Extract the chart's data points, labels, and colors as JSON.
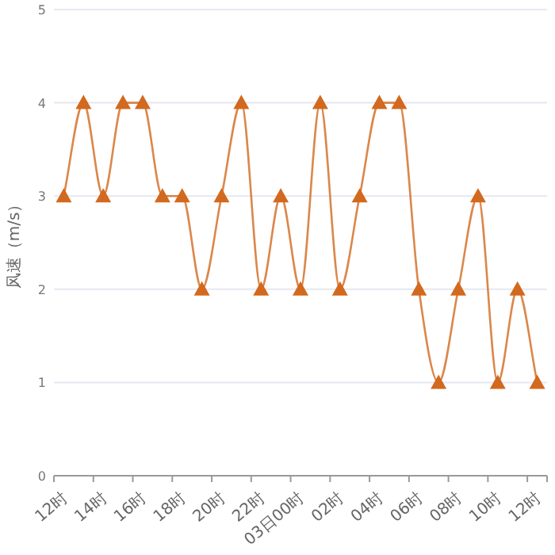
{
  "chart_data": {
    "type": "line",
    "ylabel": "风速（m/s）",
    "categories": [
      "12时",
      null,
      "14时",
      null,
      "16时",
      null,
      "18时",
      null,
      "20时",
      null,
      "22时",
      null,
      "03日00时",
      null,
      "02时",
      null,
      "04时",
      null,
      "06时",
      null,
      "08时",
      null,
      "10时",
      null,
      "12时"
    ],
    "series": [
      {
        "color": "#d2691e",
        "values": [
          3,
          4,
          3,
          4,
          4,
          3,
          3,
          2,
          3,
          4,
          2,
          3,
          2,
          4,
          2,
          3,
          4,
          4,
          2,
          1,
          2,
          3,
          1,
          2,
          1
        ]
      }
    ],
    "ylim": [
      0,
      5
    ],
    "yticks": [
      0,
      1,
      2,
      3,
      4,
      5
    ],
    "grid": "y",
    "marker": "triangle",
    "line_style": "solid"
  }
}
